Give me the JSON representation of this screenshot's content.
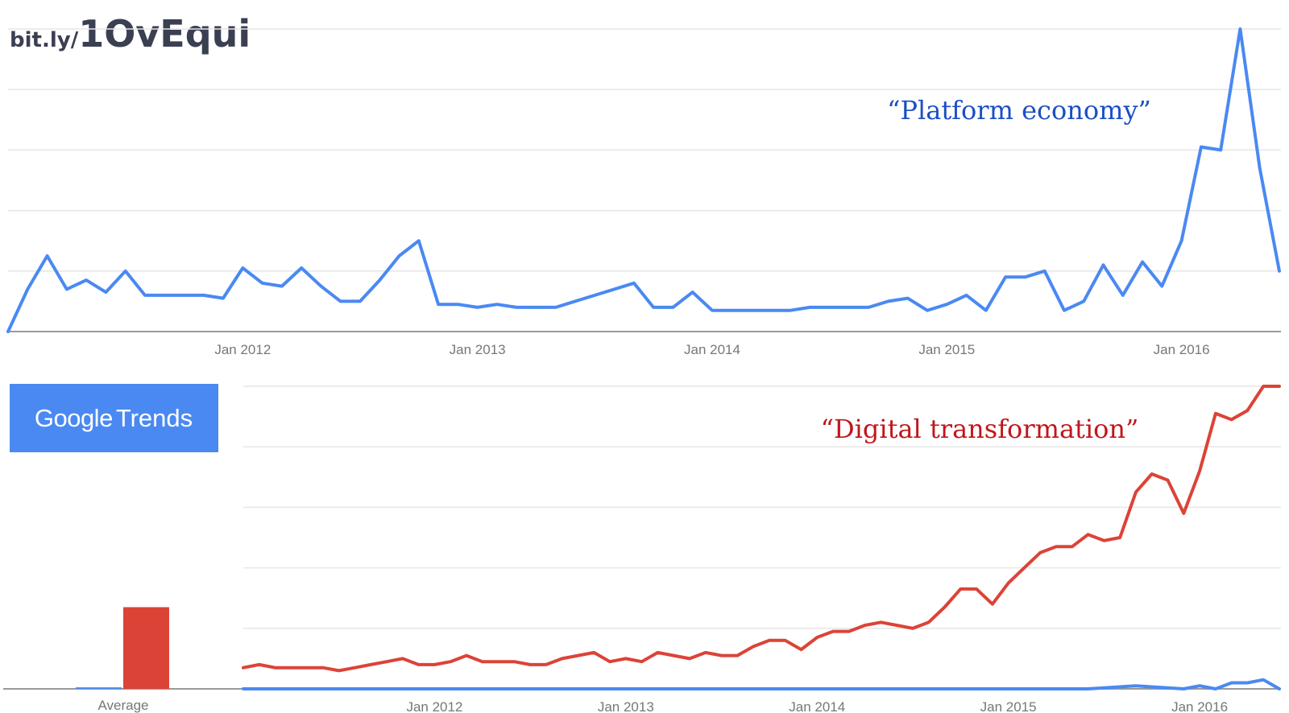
{
  "header": {
    "url_prefix": "bit.ly/",
    "url_slug": "1OvEqui"
  },
  "logo": {
    "text_main": "Google",
    "text_secondary": "Trends",
    "color": "#4a89f2"
  },
  "chart_data": [
    {
      "type": "line",
      "annotation": "“Platform economy”",
      "annotation_color": "#1a4fc4",
      "x_range": [
        "2011-01",
        "2016-06"
      ],
      "x_ticks": [
        "Jan 2012",
        "Jan 2013",
        "Jan 2014",
        "Jan 2015",
        "Jan 2016"
      ],
      "ylim": [
        0,
        100
      ],
      "grid": true,
      "series": [
        {
          "color": "#4a89f2",
          "x": [
            "2011-01",
            "2011-02",
            "2011-03",
            "2011-04",
            "2011-05",
            "2011-06",
            "2011-07",
            "2011-08",
            "2011-09",
            "2011-10",
            "2011-11",
            "2011-12",
            "2012-01",
            "2012-02",
            "2012-03",
            "2012-04",
            "2012-05",
            "2012-06",
            "2012-07",
            "2012-08",
            "2012-09",
            "2012-10",
            "2012-11",
            "2012-12",
            "2013-01",
            "2013-02",
            "2013-03",
            "2013-04",
            "2013-05",
            "2013-06",
            "2013-07",
            "2013-08",
            "2013-09",
            "2013-10",
            "2013-11",
            "2013-12",
            "2014-01",
            "2014-02",
            "2014-03",
            "2014-04",
            "2014-05",
            "2014-06",
            "2014-07",
            "2014-08",
            "2014-09",
            "2014-10",
            "2014-11",
            "2014-12",
            "2015-01",
            "2015-02",
            "2015-03",
            "2015-04",
            "2015-05",
            "2015-06",
            "2015-07",
            "2015-08",
            "2015-09",
            "2015-10",
            "2015-11",
            "2015-12",
            "2016-01",
            "2016-02",
            "2016-03",
            "2016-04",
            "2016-05",
            "2016-06"
          ],
          "y": [
            0,
            14,
            25,
            14,
            17,
            13,
            20,
            12,
            12,
            12,
            12,
            11,
            21,
            16,
            15,
            21,
            15,
            10,
            10,
            17,
            25,
            30,
            9,
            9,
            8,
            9,
            8,
            8,
            8,
            10,
            12,
            14,
            16,
            8,
            8,
            13,
            7,
            7,
            7,
            7,
            7,
            8,
            8,
            8,
            8,
            10,
            11,
            7,
            9,
            12,
            7,
            18,
            18,
            20,
            7,
            10,
            22,
            12,
            23,
            15,
            30,
            61,
            60,
            100,
            54,
            20
          ]
        }
      ]
    },
    {
      "type": "line",
      "annotation": "“Digital transformation”",
      "annotation_color": "#c0161b",
      "x_range": [
        "2011-01",
        "2016-06"
      ],
      "x_ticks": [
        "Jan 2012",
        "Jan 2013",
        "Jan 2014",
        "Jan 2015",
        "Jan 2016"
      ],
      "ylim": [
        0,
        100
      ],
      "grid": true,
      "series": [
        {
          "color": "#dc4337",
          "x": [
            "2011-01",
            "2011-02",
            "2011-03",
            "2011-04",
            "2011-05",
            "2011-06",
            "2011-07",
            "2011-08",
            "2011-09",
            "2011-10",
            "2011-11",
            "2011-12",
            "2012-01",
            "2012-02",
            "2012-03",
            "2012-04",
            "2012-05",
            "2012-06",
            "2012-07",
            "2012-08",
            "2012-09",
            "2012-10",
            "2012-11",
            "2012-12",
            "2013-01",
            "2013-02",
            "2013-03",
            "2013-04",
            "2013-05",
            "2013-06",
            "2013-07",
            "2013-08",
            "2013-09",
            "2013-10",
            "2013-11",
            "2013-12",
            "2014-01",
            "2014-02",
            "2014-03",
            "2014-04",
            "2014-05",
            "2014-06",
            "2014-07",
            "2014-08",
            "2014-09",
            "2014-10",
            "2014-11",
            "2014-12",
            "2015-01",
            "2015-02",
            "2015-03",
            "2015-04",
            "2015-05",
            "2015-06",
            "2015-07",
            "2015-08",
            "2015-09",
            "2015-10",
            "2015-11",
            "2015-12",
            "2016-01",
            "2016-02",
            "2016-03",
            "2016-04",
            "2016-05",
            "2016-06"
          ],
          "y": [
            7,
            8,
            7,
            7,
            7,
            7,
            6,
            7,
            8,
            9,
            10,
            8,
            8,
            9,
            11,
            9,
            9,
            9,
            8,
            8,
            10,
            11,
            12,
            9,
            10,
            9,
            12,
            11,
            10,
            12,
            11,
            11,
            14,
            16,
            16,
            13,
            17,
            19,
            19,
            21,
            22,
            21,
            20,
            22,
            27,
            33,
            33,
            28,
            35,
            40,
            45,
            47,
            47,
            51,
            49,
            50,
            65,
            71,
            69,
            58,
            72,
            91,
            89,
            92,
            100,
            100
          ]
        },
        {
          "color": "#4a89f2",
          "x": [
            "2011-01",
            "2011-06",
            "2011-12",
            "2012-06",
            "2012-12",
            "2013-06",
            "2013-12",
            "2014-06",
            "2014-12",
            "2015-06",
            "2015-09",
            "2015-12",
            "2016-01",
            "2016-02",
            "2016-03",
            "2016-04",
            "2016-05",
            "2016-06"
          ],
          "y": [
            0,
            0,
            0,
            0,
            0,
            0,
            0,
            0,
            0,
            0,
            1,
            0,
            1,
            0,
            2,
            2,
            3,
            0
          ]
        }
      ],
      "average_bars": {
        "label": "Average",
        "values": [
          {
            "color": "#4a89f2",
            "value": 0.5
          },
          {
            "color": "#dc4337",
            "value": 27
          }
        ]
      }
    }
  ]
}
